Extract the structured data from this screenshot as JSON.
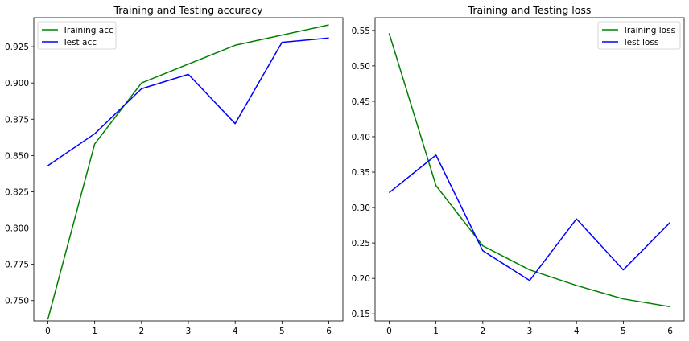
{
  "chart_data": [
    {
      "type": "line",
      "title": "Training and Testing accuracy",
      "xlabel": "",
      "ylabel": "",
      "x": [
        0,
        1,
        2,
        3,
        4,
        5,
        6
      ],
      "xlim": [
        -0.3,
        6.3
      ],
      "ylim": [
        0.736,
        0.945
      ],
      "xticks": [
        0,
        1,
        2,
        3,
        4,
        5,
        6
      ],
      "yticks": [
        0.75,
        0.775,
        0.8,
        0.825,
        0.85,
        0.875,
        0.9,
        0.925
      ],
      "ytick_labels": [
        "0.750",
        "0.775",
        "0.800",
        "0.825",
        "0.850",
        "0.875",
        "0.900",
        "0.925"
      ],
      "grid": false,
      "legend_position": "top-left",
      "series": [
        {
          "name": "Training acc",
          "color": "#008000",
          "values": [
            0.737,
            0.858,
            0.9,
            0.913,
            0.926,
            0.933,
            0.94
          ]
        },
        {
          "name": "Test acc",
          "color": "#0000ff",
          "values": [
            0.843,
            0.865,
            0.896,
            0.906,
            0.872,
            0.928,
            0.931
          ]
        }
      ]
    },
    {
      "type": "line",
      "title": "Training and Testing loss",
      "xlabel": "",
      "ylabel": "",
      "x": [
        0,
        1,
        2,
        3,
        4,
        5,
        6
      ],
      "xlim": [
        -0.3,
        6.3
      ],
      "ylim": [
        0.14,
        0.568
      ],
      "xticks": [
        0,
        1,
        2,
        3,
        4,
        5,
        6
      ],
      "yticks": [
        0.15,
        0.2,
        0.25,
        0.3,
        0.35,
        0.4,
        0.45,
        0.5,
        0.55
      ],
      "ytick_labels": [
        "0.15",
        "0.20",
        "0.25",
        "0.30",
        "0.35",
        "0.40",
        "0.45",
        "0.50",
        "0.55"
      ],
      "grid": false,
      "legend_position": "top-right",
      "series": [
        {
          "name": "Training loss",
          "color": "#008000",
          "values": [
            0.546,
            0.331,
            0.246,
            0.212,
            0.19,
            0.171,
            0.16
          ]
        },
        {
          "name": "Test loss",
          "color": "#0000ff",
          "values": [
            0.321,
            0.374,
            0.239,
            0.197,
            0.284,
            0.212,
            0.279
          ]
        }
      ]
    }
  ]
}
